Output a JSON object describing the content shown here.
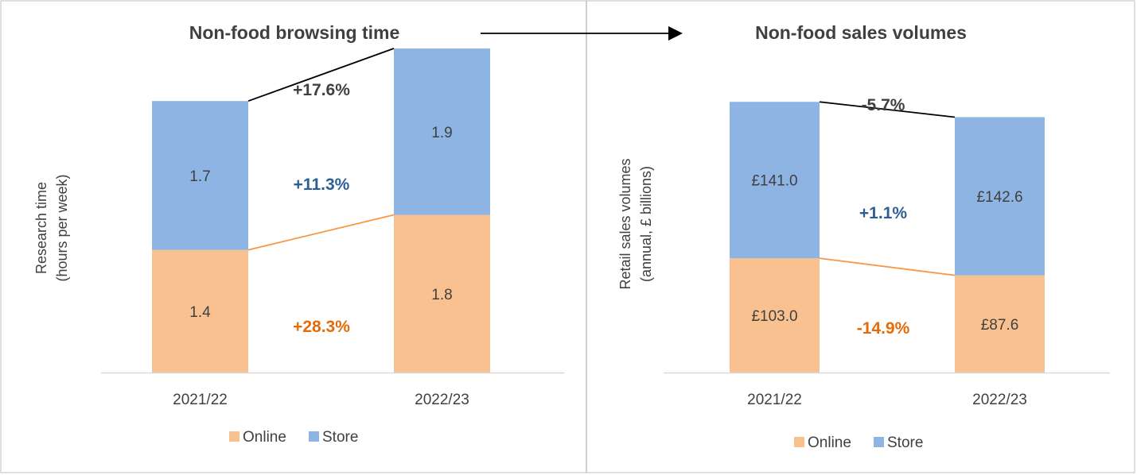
{
  "colors": {
    "online": "#F8C18F",
    "store": "#8EB4E3",
    "total_change": "#404040",
    "store_change": "#2E5E96",
    "online_change": "#E36C0A",
    "text": "#404040",
    "axis": "#D9D9D9",
    "frame": "#BFBFBF"
  },
  "chart_data": [
    {
      "type": "bar",
      "stacked": true,
      "title": "Non-food browsing time",
      "ylabel": "Research time\n(hours per week)",
      "categories": [
        "2021/22",
        "2022/23"
      ],
      "series": [
        {
          "name": "Online",
          "values": [
            1.4,
            1.8
          ],
          "labels": [
            "1.4",
            "1.8"
          ]
        },
        {
          "name": "Store",
          "values": [
            1.7,
            1.9
          ],
          "labels": [
            "1.7",
            "1.9"
          ]
        }
      ],
      "ylim": [
        0,
        3.8
      ],
      "legend": "bottom",
      "grid": false,
      "annotations": {
        "total": "+17.6%",
        "store": "+11.3%",
        "online": "+28.3%"
      }
    },
    {
      "type": "bar",
      "stacked": true,
      "title": "Non-food sales volumes",
      "ylabel": "Retail sales volumes\n(annual, £ billions)",
      "categories": [
        "2021/22",
        "2022/23"
      ],
      "series": [
        {
          "name": "Online",
          "values": [
            103.0,
            87.6
          ],
          "labels": [
            "£103.0",
            "£87.6"
          ]
        },
        {
          "name": "Store",
          "values": [
            141.0,
            142.6
          ],
          "labels": [
            "£141.0",
            "£142.6"
          ]
        }
      ],
      "ylim": [
        0,
        300
      ],
      "legend": "bottom",
      "grid": false,
      "annotations": {
        "total": "-5.7%",
        "store": "+1.1%",
        "online": "-14.9%"
      }
    }
  ]
}
